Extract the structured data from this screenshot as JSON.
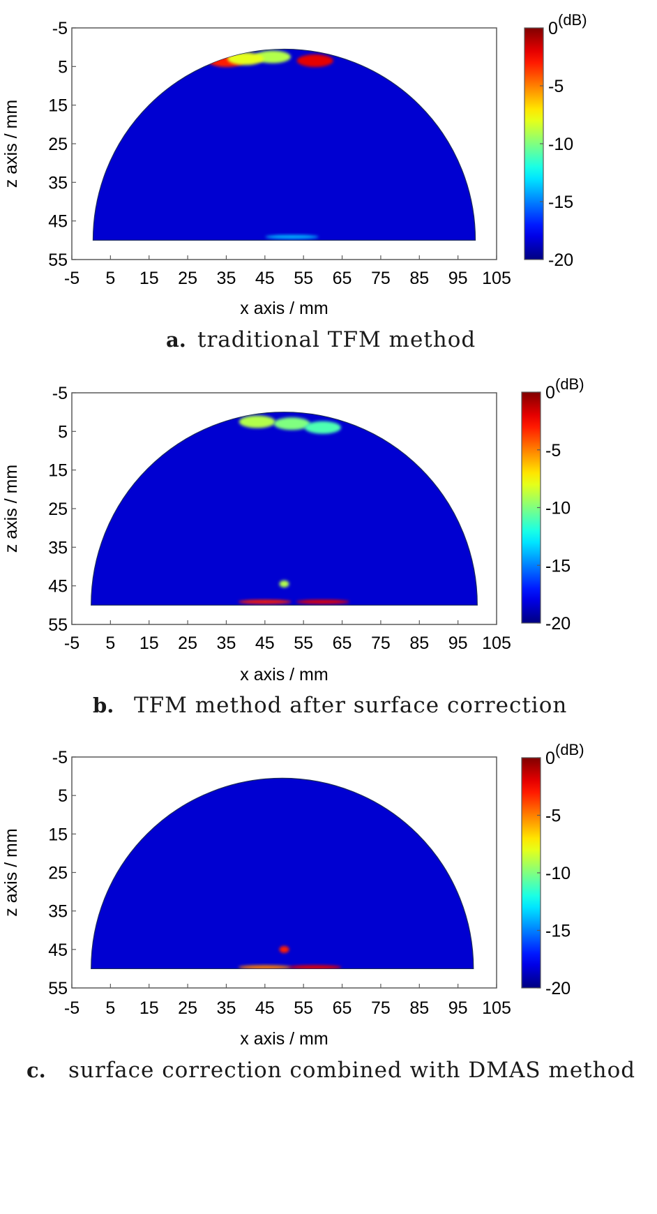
{
  "chart_data": [
    {
      "type": "heatmap",
      "panel_letter": "a.",
      "caption": "traditional TFM method",
      "xlabel": "x axis / mm",
      "ylabel": "z axis / mm",
      "xlim": [
        -5,
        105
      ],
      "ylim": [
        55,
        -5
      ],
      "x_ticks": [
        "-5",
        "5",
        "15",
        "25",
        "35",
        "45",
        "55",
        "65",
        "75",
        "85",
        "95",
        "105"
      ],
      "y_ticks": [
        "-5",
        "5",
        "15",
        "25",
        "35",
        "45",
        "55"
      ],
      "colorbar": {
        "ticks": [
          "0",
          "-5",
          "-10",
          "-15",
          "-20"
        ],
        "unit": "(dB)",
        "range": [
          -20,
          0
        ],
        "colormap": "jet"
      },
      "region": {
        "shape": "half-disk",
        "center_x": 50,
        "flat_z": 50,
        "radius": 49.5
      },
      "hotspots": [
        {
          "x": 35,
          "z": 3.5,
          "level_db": -3
        },
        {
          "x": 58,
          "z": 3.5,
          "level_db": -2
        },
        {
          "x": 47,
          "z": 2.5,
          "level_db": -9
        },
        {
          "x": 40,
          "z": 3,
          "level_db": -8
        },
        {
          "x": 52,
          "z": 49.5,
          "level_db": -14
        }
      ]
    },
    {
      "type": "heatmap",
      "panel_letter": "b.",
      "caption": "TFM method after surface correction",
      "xlabel": "x axis / mm",
      "ylabel": "z axis / mm",
      "xlim": [
        -5,
        105
      ],
      "ylim": [
        55,
        -5
      ],
      "x_ticks": [
        "-5",
        "5",
        "15",
        "25",
        "35",
        "45",
        "55",
        "65",
        "75",
        "85",
        "95",
        "105"
      ],
      "y_ticks": [
        "-5",
        "5",
        "15",
        "25",
        "35",
        "45",
        "55"
      ],
      "colorbar": {
        "ticks": [
          "0",
          "-5",
          "-10",
          "-15",
          "-20"
        ],
        "unit": "(dB)",
        "range": [
          -20,
          0
        ],
        "colormap": "jet"
      },
      "region": {
        "shape": "half-disk",
        "center_x": 50,
        "flat_z": 50,
        "radius": 50
      },
      "hotspots": [
        {
          "x": 43,
          "z": 2.5,
          "level_db": -9
        },
        {
          "x": 52,
          "z": 3,
          "level_db": -10
        },
        {
          "x": 60,
          "z": 4,
          "level_db": -11
        },
        {
          "x": 50,
          "z": 44.5,
          "level_db": -9
        },
        {
          "x": 45,
          "z": 49.5,
          "level_db": -3
        },
        {
          "x": 60,
          "z": 49.5,
          "level_db": -2
        }
      ]
    },
    {
      "type": "heatmap",
      "panel_letter": "c.",
      "caption": "surface correction combined with DMAS method",
      "xlabel": "x axis / mm",
      "ylabel": "z axis / mm",
      "xlim": [
        -5,
        105
      ],
      "ylim": [
        55,
        -5
      ],
      "x_ticks": [
        "-5",
        "5",
        "15",
        "25",
        "35",
        "45",
        "55",
        "65",
        "75",
        "85",
        "95",
        "105"
      ],
      "y_ticks": [
        "-5",
        "5",
        "15",
        "25",
        "35",
        "45",
        "55"
      ],
      "colorbar": {
        "ticks": [
          "0",
          "-5",
          "-10",
          "-15",
          "-20"
        ],
        "unit": "(dB)",
        "range": [
          -20,
          0
        ],
        "colormap": "jet"
      },
      "region": {
        "shape": "half-disk",
        "center_x": 49.5,
        "flat_z": 50,
        "radius": 49.5
      },
      "hotspots": [
        {
          "x": 50,
          "z": 45,
          "level_db": -3
        },
        {
          "x": 45,
          "z": 50,
          "level_db": -5
        },
        {
          "x": 58,
          "z": 50,
          "level_db": -2
        }
      ]
    }
  ]
}
